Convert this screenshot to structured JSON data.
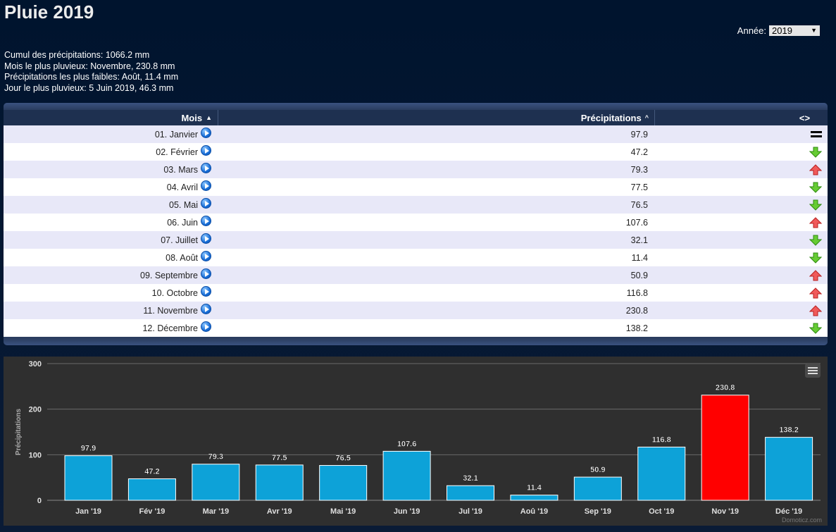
{
  "page": {
    "title": "Pluie 2019"
  },
  "year_selector": {
    "label": "Année:",
    "value": "2019"
  },
  "summary": {
    "lines": [
      "Cumul des précipitations: 1066.2 mm",
      "Mois le plus pluvieux: Novembre, 230.8 mm",
      "Précipitations les plus faibles: Août, 11.4 mm",
      "Jour le plus pluvieux: 5 Juin 2019, 46.3 mm"
    ]
  },
  "table": {
    "headers": {
      "month": "Mois",
      "precip": "Précipitations",
      "trend": "<>"
    },
    "rows": [
      {
        "month": "01. Janvier",
        "value": "97.9",
        "trend": "equal"
      },
      {
        "month": "02. Février",
        "value": "47.2",
        "trend": "down"
      },
      {
        "month": "03. Mars",
        "value": "79.3",
        "trend": "up"
      },
      {
        "month": "04. Avril",
        "value": "77.5",
        "trend": "down"
      },
      {
        "month": "05. Mai",
        "value": "76.5",
        "trend": "down"
      },
      {
        "month": "06. Juin",
        "value": "107.6",
        "trend": "up"
      },
      {
        "month": "07. Juillet",
        "value": "32.1",
        "trend": "down"
      },
      {
        "month": "08. Août",
        "value": "11.4",
        "trend": "down"
      },
      {
        "month": "09. Septembre",
        "value": "50.9",
        "trend": "up"
      },
      {
        "month": "10. Octobre",
        "value": "116.8",
        "trend": "up"
      },
      {
        "month": "11. Novembre",
        "value": "230.8",
        "trend": "up"
      },
      {
        "month": "12. Décembre",
        "value": "138.2",
        "trend": "down"
      }
    ]
  },
  "chart_data": {
    "type": "bar",
    "categories": [
      "Jan '19",
      "Fév '19",
      "Mar '19",
      "Avr '19",
      "Mai '19",
      "Jun '19",
      "Jul '19",
      "Aoû '19",
      "Sep '19",
      "Oct '19",
      "Nov '19",
      "Déc '19"
    ],
    "values": [
      97.9,
      47.2,
      79.3,
      77.5,
      76.5,
      107.6,
      32.1,
      11.4,
      50.9,
      116.8,
      230.8,
      138.2
    ],
    "ylabel": "Précipitations",
    "ylim": [
      0,
      300
    ],
    "yticks": [
      0,
      100,
      200,
      300
    ],
    "highlight_index": 10,
    "bar_color": "#0da2d8",
    "highlight_color": "#ff0000",
    "grid": true,
    "credit": "Domoticz.com"
  }
}
